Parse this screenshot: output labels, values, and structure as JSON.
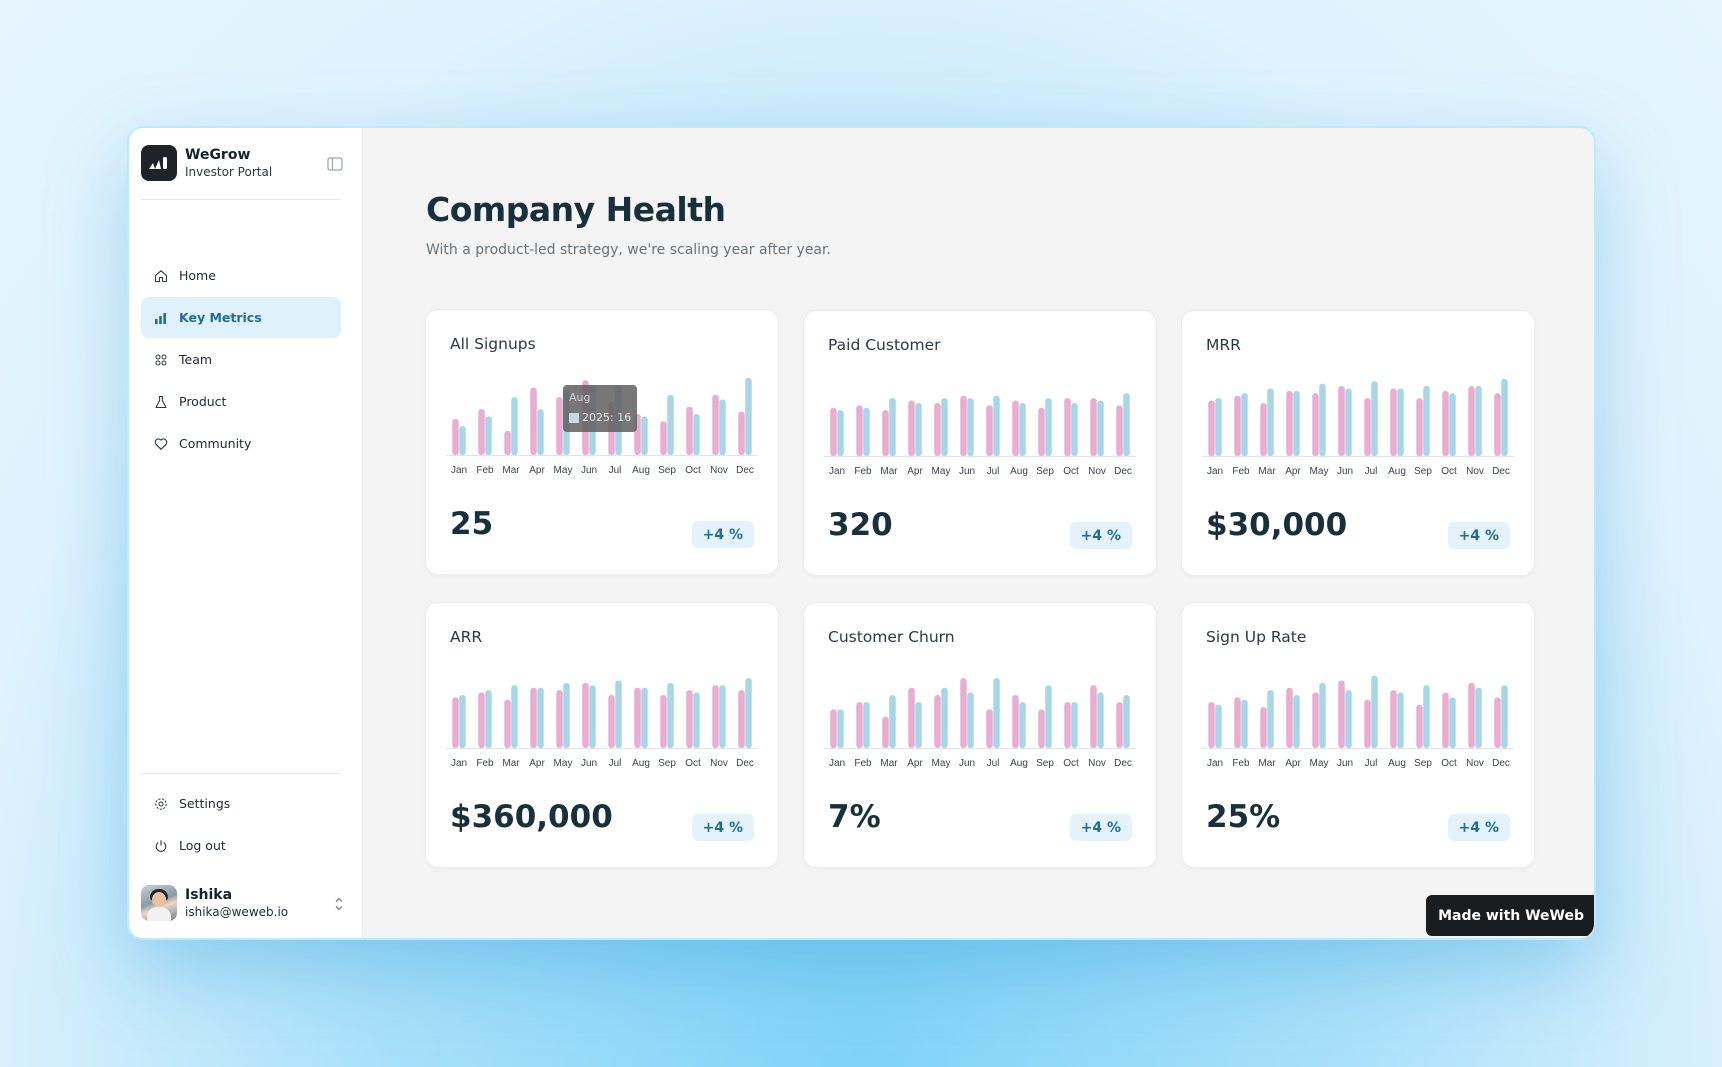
{
  "brand": {
    "name": "WeGrow",
    "subtitle": "Investor Portal"
  },
  "nav": [
    {
      "label": "Home",
      "icon": "home-icon",
      "active": false
    },
    {
      "label": "Key Metrics",
      "icon": "bar-chart-icon",
      "active": true
    },
    {
      "label": "Team",
      "icon": "team-icon",
      "active": false
    },
    {
      "label": "Product",
      "icon": "flask-icon",
      "active": false
    },
    {
      "label": "Community",
      "icon": "heart-icon",
      "active": false
    }
  ],
  "bottom_nav": [
    {
      "label": "Settings",
      "icon": "gear-icon"
    },
    {
      "label": "Log out",
      "icon": "power-icon"
    }
  ],
  "user": {
    "name": "Ishika",
    "email": "ishika@weweb.io"
  },
  "page": {
    "title": "Company Health",
    "subtitle": "With a product-led strategy, we're scaling year after year."
  },
  "colors": {
    "series_a": "#e7aed2",
    "series_b": "#a7d6e6",
    "accent": "#1f6f95",
    "badge_bg": "#e4f3fb"
  },
  "cards": [
    {
      "title": "All Signups",
      "value": "25",
      "badge": "+4 %"
    },
    {
      "title": "Paid Customer",
      "value": "320",
      "badge": "+4 %"
    },
    {
      "title": "MRR",
      "value": "$30,000",
      "badge": "+4 %"
    },
    {
      "title": "ARR",
      "value": "$360,000",
      "badge": "+4 %"
    },
    {
      "title": "Customer Churn",
      "value": "7%",
      "badge": "+4 %"
    },
    {
      "title": "Sign Up Rate",
      "value": "25%",
      "badge": "+4 %"
    }
  ],
  "tooltip": {
    "month": "Aug",
    "text": "2025: 16"
  },
  "made_with": "Made with WeWeb",
  "chart_data": [
    {
      "type": "bar",
      "categories": [
        "Jan",
        "Feb",
        "Mar",
        "Apr",
        "May",
        "Jun",
        "Jul",
        "Aug",
        "Sep",
        "Oct",
        "Nov",
        "Dec"
      ],
      "series": [
        {
          "values": [
            15,
            19,
            10,
            28,
            24,
            31,
            22,
            17,
            14,
            20,
            25,
            18
          ]
        },
        {
          "values": [
            12,
            16,
            24,
            19,
            27,
            29,
            29,
            16,
            25,
            17,
            23,
            32
          ]
        }
      ]
    },
    {
      "type": "bar",
      "categories": [
        "Jan",
        "Feb",
        "Mar",
        "Apr",
        "May",
        "Jun",
        "Jul",
        "Aug",
        "Sep",
        "Oct",
        "Nov",
        "Dec"
      ],
      "series": [
        {
          "values": [
            20,
            21,
            19,
            23,
            22,
            25,
            21,
            23,
            20,
            24,
            24,
            21
          ]
        },
        {
          "values": [
            19,
            20,
            24,
            22,
            24,
            24,
            25,
            22,
            24,
            22,
            23,
            26
          ]
        }
      ]
    },
    {
      "type": "bar",
      "categories": [
        "Jan",
        "Feb",
        "Mar",
        "Apr",
        "May",
        "Jun",
        "Jul",
        "Aug",
        "Sep",
        "Oct",
        "Nov",
        "Dec"
      ],
      "series": [
        {
          "values": [
            23,
            25,
            22,
            27,
            26,
            29,
            24,
            28,
            24,
            27,
            29,
            26
          ]
        },
        {
          "values": [
            24,
            26,
            28,
            27,
            30,
            28,
            31,
            28,
            29,
            26,
            29,
            32
          ]
        }
      ]
    },
    {
      "type": "bar",
      "categories": [
        "Jan",
        "Feb",
        "Mar",
        "Apr",
        "May",
        "Jun",
        "Jul",
        "Aug",
        "Sep",
        "Oct",
        "Nov",
        "Dec"
      ],
      "series": [
        {
          "values": [
            21,
            23,
            20,
            25,
            24,
            27,
            22,
            25,
            22,
            24,
            26,
            24
          ]
        },
        {
          "values": [
            22,
            24,
            26,
            25,
            27,
            26,
            28,
            25,
            27,
            23,
            26,
            29
          ]
        }
      ]
    },
    {
      "type": "bar",
      "categories": [
        "Jan",
        "Feb",
        "Mar",
        "Apr",
        "May",
        "Jun",
        "Jul",
        "Aug",
        "Sep",
        "Oct",
        "Nov",
        "Dec"
      ],
      "series": [
        {
          "values": [
            16,
            19,
            13,
            25,
            22,
            29,
            16,
            22,
            16,
            19,
            26,
            19
          ]
        },
        {
          "values": [
            16,
            19,
            22,
            19,
            25,
            23,
            29,
            19,
            26,
            19,
            23,
            22
          ]
        }
      ]
    },
    {
      "type": "bar",
      "categories": [
        "Jan",
        "Feb",
        "Mar",
        "Apr",
        "May",
        "Jun",
        "Jul",
        "Aug",
        "Sep",
        "Oct",
        "Nov",
        "Dec"
      ],
      "series": [
        {
          "values": [
            19,
            21,
            17,
            25,
            23,
            28,
            20,
            24,
            18,
            23,
            27,
            21
          ]
        },
        {
          "values": [
            18,
            20,
            24,
            22,
            27,
            24,
            30,
            23,
            26,
            21,
            25,
            26
          ]
        }
      ]
    }
  ]
}
